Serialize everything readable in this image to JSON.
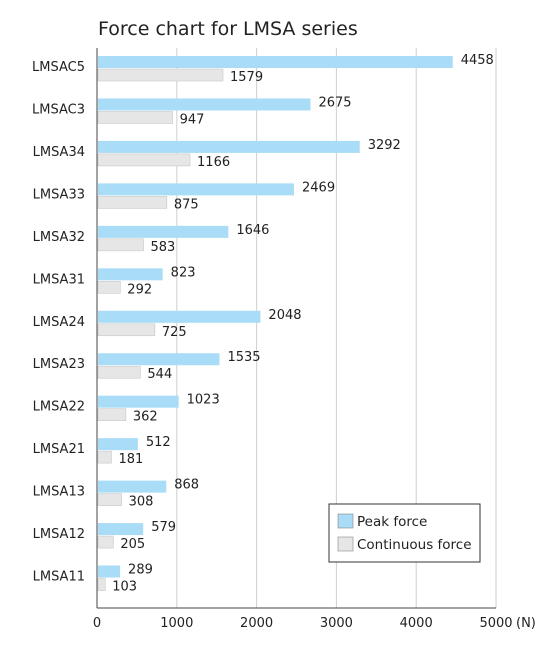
{
  "chart_data": {
    "type": "bar",
    "orientation": "horizontal",
    "title": "Force chart for LMSA series",
    "unit_label": "(N)",
    "categories": [
      "LMSAC5",
      "LMSAC3",
      "LMSA34",
      "LMSA33",
      "LMSA32",
      "LMSA31",
      "LMSA24",
      "LMSA23",
      "LMSA22",
      "LMSA21",
      "LMSA13",
      "LMSA12",
      "LMSA11"
    ],
    "series": [
      {
        "name": "Peak force",
        "color": "#a9dcf6",
        "values": [
          4458,
          2675,
          3292,
          2469,
          1646,
          823,
          2048,
          1535,
          1023,
          512,
          868,
          579,
          289
        ]
      },
      {
        "name": "Continuous force",
        "color": "#e6e6e6",
        "values": [
          1579,
          947,
          1166,
          875,
          583,
          292,
          725,
          544,
          362,
          181,
          308,
          205,
          103
        ]
      }
    ],
    "x_ticks": [
      "0",
      "1000",
      "2000",
      "3000",
      "4000",
      "5000"
    ],
    "xlim": [
      0,
      5000
    ],
    "grid": true,
    "legend_position": "bottom-right"
  }
}
